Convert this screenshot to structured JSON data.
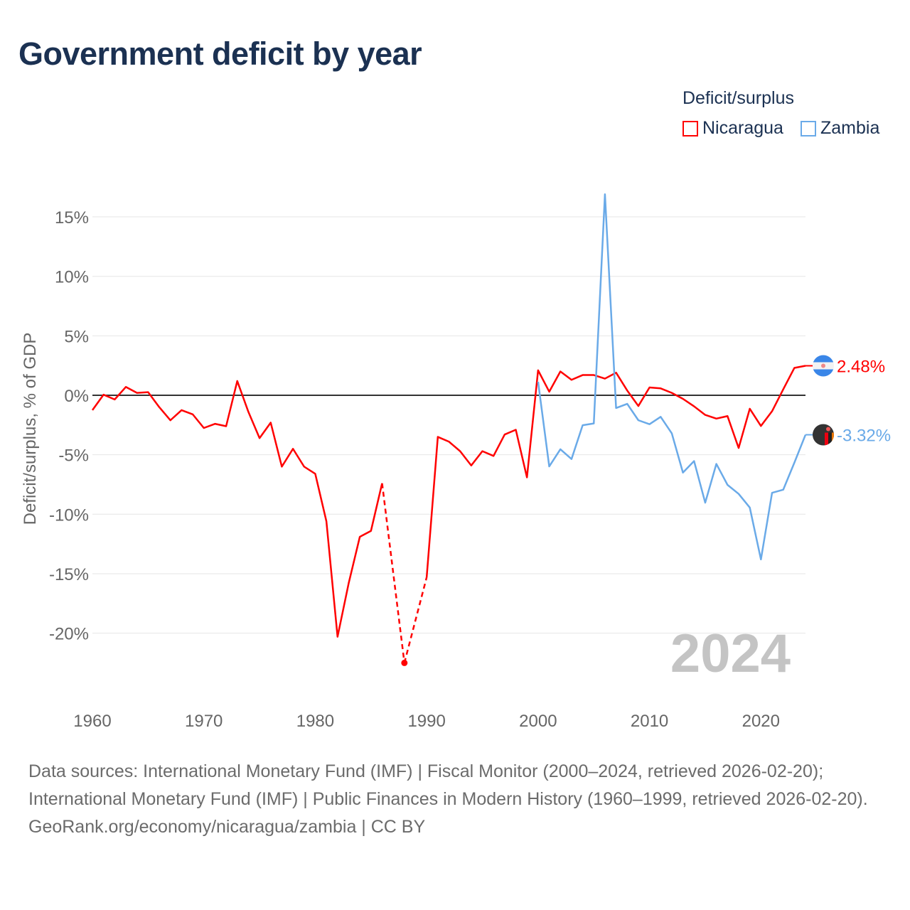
{
  "title": "Government deficit by year",
  "legend": {
    "title": "Deficit/surplus"
  },
  "chart_data": {
    "type": "line",
    "title": "Government deficit by year",
    "xlabel": "",
    "ylabel": "Deficit/surplus, % of GDP",
    "xlim": [
      1960,
      2024
    ],
    "ylim": [
      -25,
      17.5
    ],
    "x_ticks": [
      1960,
      1970,
      1980,
      1990,
      2000,
      2010,
      2020
    ],
    "y_ticks": [
      15,
      10,
      5,
      0,
      -5,
      -10,
      -15,
      -20
    ],
    "y_tick_labels": [
      "15%",
      "10%",
      "5%",
      "0%",
      "-5%",
      "-10%",
      "-15%",
      "-20%"
    ],
    "x_tick_labels": [
      "1960",
      "1970",
      "1980",
      "1990",
      "2000",
      "2010",
      "2020"
    ],
    "grid": true,
    "legend_position": "top-right",
    "year_label": "2024",
    "series": [
      {
        "name": "Nicaragua",
        "color": "#ff0000",
        "end_label": "2.48%",
        "flag": "nicaragua-flag",
        "x": [
          1960,
          1961,
          1962,
          1963,
          1964,
          1965,
          1966,
          1967,
          1968,
          1969,
          1970,
          1971,
          1972,
          1973,
          1974,
          1975,
          1976,
          1977,
          1978,
          1979,
          1980,
          1981,
          1982,
          1983,
          1984,
          1985,
          1986,
          1987,
          1988,
          1989,
          1990,
          1991,
          1992,
          1993,
          1994,
          1995,
          1996,
          1997,
          1998,
          1999,
          2000,
          2001,
          2002,
          2003,
          2004,
          2005,
          2006,
          2007,
          2008,
          2009,
          2010,
          2011,
          2012,
          2013,
          2014,
          2015,
          2016,
          2017,
          2018,
          2019,
          2020,
          2021,
          2022,
          2023,
          2024
        ],
        "values": [
          -1.25,
          0.05,
          -0.35,
          0.7,
          0.2,
          0.26,
          -1.0,
          -2.1,
          -1.25,
          -1.6,
          -2.75,
          -2.4,
          -2.6,
          1.2,
          -1.4,
          -3.6,
          -2.3,
          -6.0,
          -4.5,
          -6.0,
          -6.6,
          -10.6,
          -20.3,
          -15.8,
          -11.9,
          -11.4,
          -7.4,
          null,
          -22.5,
          null,
          -15.3,
          -3.5,
          -3.9,
          -4.7,
          -5.9,
          -4.7,
          -5.1,
          -3.3,
          -2.9,
          -6.9,
          2.1,
          0.3,
          2.0,
          1.3,
          1.7,
          1.7,
          1.4,
          1.9,
          0.4,
          -0.9,
          0.66,
          0.58,
          0.2,
          -0.3,
          -0.93,
          -1.65,
          -1.96,
          -1.75,
          -4.43,
          -1.13,
          -2.58,
          -1.34,
          0.5,
          2.3,
          2.48
        ]
      },
      {
        "name": "Zambia",
        "color": "#6aaae8",
        "end_label": "-3.32%",
        "flag": "zambia-flag",
        "x": [
          2000,
          2001,
          2002,
          2003,
          2004,
          2005,
          2006,
          2007,
          2008,
          2009,
          2010,
          2011,
          2012,
          2013,
          2014,
          2015,
          2016,
          2017,
          2018,
          2019,
          2020,
          2021,
          2022,
          2023,
          2024
        ],
        "values": [
          1.13,
          -5.98,
          -4.54,
          -5.36,
          -2.52,
          -2.37,
          16.9,
          -1.07,
          -0.72,
          -2.1,
          -2.43,
          -1.81,
          -3.2,
          -6.5,
          -5.53,
          -9.03,
          -5.77,
          -7.53,
          -8.29,
          -9.44,
          -13.8,
          -8.2,
          -7.94,
          -5.67,
          -3.32
        ]
      }
    ]
  },
  "footer": {
    "sources": "Data sources: International Monetary Fund (IMF) | Fiscal Monitor (2000–2024, retrieved 2026-02-20); International Monetary Fund (IMF) | Public Finances in Modern History (1960–1999, retrieved 2026-02-20).",
    "credit": "GeoRank.org/economy/nicaragua/zambia | CC BY"
  }
}
